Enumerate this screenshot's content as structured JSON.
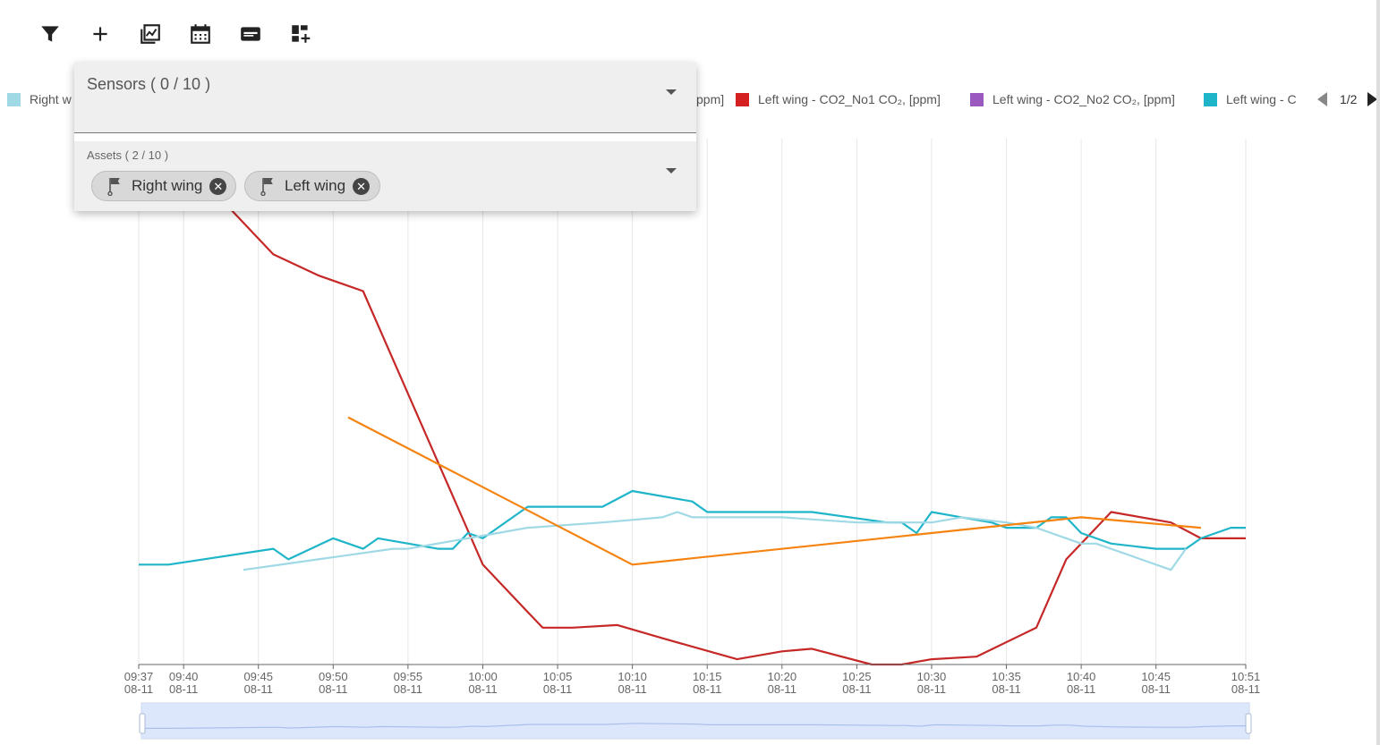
{
  "toolbar": {
    "buttons": [
      {
        "name": "filter-icon"
      },
      {
        "name": "add-icon"
      },
      {
        "name": "chart-add-icon"
      },
      {
        "name": "calendar-icon"
      },
      {
        "name": "card-icon"
      },
      {
        "name": "dashboard-add-icon"
      }
    ]
  },
  "legend": {
    "items": [
      {
        "label": "Right w",
        "color": "#9fd9e6"
      },
      {
        "label": "ppm]",
        "color": null
      },
      {
        "label": "Left wing - CO2_No1 CO₂, [ppm]",
        "color": "#d42020"
      },
      {
        "label": "Left wing - CO2_No2 CO₂, [ppm]",
        "color": "#9b59c0"
      },
      {
        "label": "Left wing - C",
        "color": "#1fb5c9"
      }
    ],
    "page": "1/2"
  },
  "filter_panel": {
    "sensors_label": "Sensors ( 0 / 10 )",
    "assets_label": "Assets ( 2 / 10 )",
    "chips": [
      {
        "label": "Right wing"
      },
      {
        "label": "Left wing"
      }
    ]
  },
  "chart_data": {
    "type": "line",
    "x_ticks": [
      {
        "time": "09:37",
        "date": "08-11"
      },
      {
        "time": "09:40",
        "date": "08-11"
      },
      {
        "time": "09:45",
        "date": "08-11"
      },
      {
        "time": "09:50",
        "date": "08-11"
      },
      {
        "time": "09:55",
        "date": "08-11"
      },
      {
        "time": "10:00",
        "date": "08-11"
      },
      {
        "time": "10:05",
        "date": "08-11"
      },
      {
        "time": "10:10",
        "date": "08-11"
      },
      {
        "time": "10:15",
        "date": "08-11"
      },
      {
        "time": "10:20",
        "date": "08-11"
      },
      {
        "time": "10:25",
        "date": "08-11"
      },
      {
        "time": "10:30",
        "date": "08-11"
      },
      {
        "time": "10:35",
        "date": "08-11"
      },
      {
        "time": "10:40",
        "date": "08-11"
      },
      {
        "time": "10:45",
        "date": "08-11"
      },
      {
        "time": "10:51",
        "date": "08-11"
      }
    ],
    "x_range": [
      "09:37",
      "10:51"
    ],
    "y_axis_labels": "none visible",
    "grid": "vertical",
    "series": [
      {
        "name": "Left wing - CO2_No1 CO₂, [ppm]",
        "color": "#c62828",
        "x": [
          "09:43",
          "09:46",
          "09:49",
          "09:52",
          "10:00",
          "10:03",
          "10:04",
          "10:06",
          "10:09",
          "10:12",
          "10:17",
          "10:20",
          "10:22",
          "10:26",
          "10:28",
          "10:30",
          "10:33",
          "10:37",
          "10:39",
          "10:42",
          "10:46",
          "10:48",
          "10:51"
        ],
        "y": [
          0.87,
          0.78,
          0.74,
          0.71,
          0.19,
          0.1,
          0.07,
          0.07,
          0.075,
          0.05,
          0.01,
          0.025,
          0.03,
          0.0,
          0.0,
          0.01,
          0.015,
          0.07,
          0.2,
          0.29,
          0.27,
          0.24,
          0.24
        ]
      },
      {
        "name": "Left wing - C",
        "color": "#1fb5c9",
        "x": [
          "09:37",
          "09:39",
          "09:46",
          "09:47",
          "09:50",
          "09:52",
          "09:53",
          "09:57",
          "09:58",
          "09:59",
          "10:00",
          "10:03",
          "10:05",
          "10:08",
          "10:10",
          "10:14",
          "10:15",
          "10:18",
          "10:22",
          "10:27",
          "10:28",
          "10:29",
          "10:30",
          "10:32",
          "10:34",
          "10:35",
          "10:37",
          "10:38",
          "10:39",
          "10:40",
          "10:41",
          "10:42",
          "10:45",
          "10:47",
          "10:48",
          "10:49",
          "10:50",
          "10:51"
        ],
        "y": [
          0.19,
          0.19,
          0.22,
          0.2,
          0.24,
          0.22,
          0.24,
          0.22,
          0.22,
          0.25,
          0.24,
          0.3,
          0.3,
          0.3,
          0.33,
          0.31,
          0.29,
          0.29,
          0.29,
          0.27,
          0.27,
          0.25,
          0.29,
          0.28,
          0.27,
          0.26,
          0.26,
          0.28,
          0.28,
          0.25,
          0.24,
          0.23,
          0.22,
          0.22,
          0.24,
          0.25,
          0.26,
          0.26
        ]
      },
      {
        "name": "",
        "color": "#9fd9e6",
        "x": [
          "09:44",
          "09:49",
          "09:54",
          "09:55",
          "10:01",
          "10:03",
          "10:08",
          "10:12",
          "10:13",
          "10:14",
          "10:15",
          "10:20",
          "10:25",
          "10:30",
          "10:32",
          "10:35",
          "10:37",
          "10:40",
          "10:41",
          "10:43",
          "10:46",
          "10:47"
        ],
        "y": [
          0.18,
          0.2,
          0.22,
          0.22,
          0.25,
          0.26,
          0.27,
          0.28,
          0.29,
          0.28,
          0.28,
          0.28,
          0.27,
          0.27,
          0.28,
          0.27,
          0.26,
          0.23,
          0.23,
          0.21,
          0.18,
          0.22
        ]
      },
      {
        "name": "",
        "color": "#f5830f",
        "x": [
          "09:51",
          "10:10",
          "10:40",
          "10:48"
        ],
        "y": [
          0.47,
          0.19,
          0.28,
          0.26
        ]
      }
    ]
  }
}
